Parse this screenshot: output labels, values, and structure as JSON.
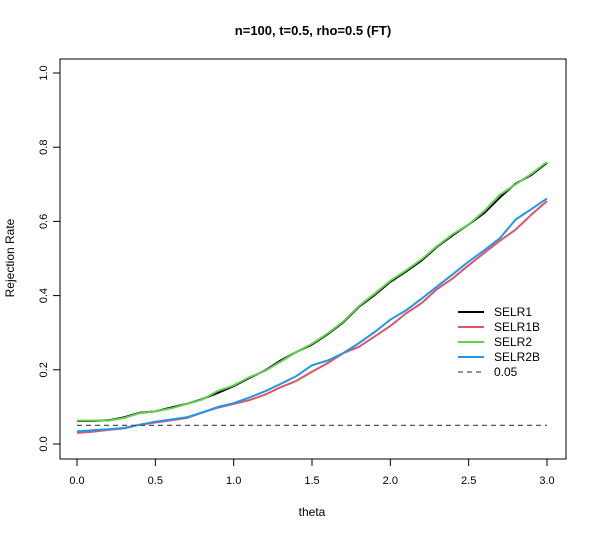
{
  "chart_data": {
    "type": "line",
    "title": "n=100, t=0.5, rho=0.5 (FT)",
    "xlabel": "theta",
    "ylabel": "Rejection Rate",
    "xlim": [
      0,
      3
    ],
    "ylim": [
      0,
      1
    ],
    "xticks": [
      0,
      0.5,
      1,
      1.5,
      2,
      2.5,
      3
    ],
    "xtick_labels": [
      "0.0",
      "0.5",
      "1.0",
      "1.5",
      "2.0",
      "2.5",
      "3.0"
    ],
    "yticks": [
      0,
      0.2,
      0.4,
      0.6,
      0.8,
      1
    ],
    "ytick_labels": [
      "0.0",
      "0.2",
      "0.4",
      "0.6",
      "0.8",
      "1.0"
    ],
    "grid": false,
    "legend_position": "right",
    "x": [
      0,
      0.1,
      0.2,
      0.3,
      0.4,
      0.5,
      0.6,
      0.7,
      0.8,
      0.9,
      1.0,
      1.1,
      1.2,
      1.3,
      1.4,
      1.5,
      1.6,
      1.7,
      1.8,
      1.9,
      2.0,
      2.1,
      2.2,
      2.3,
      2.4,
      2.5,
      2.6,
      2.7,
      2.8,
      2.9,
      3.0
    ],
    "series": [
      {
        "name": "SELR1",
        "color": "#000000",
        "dash": "solid",
        "values": [
          0.062,
          0.062,
          0.064,
          0.072,
          0.084,
          0.088,
          0.098,
          0.108,
          0.121,
          0.138,
          0.156,
          0.178,
          0.198,
          0.225,
          0.248,
          0.268,
          0.296,
          0.328,
          0.37,
          0.402,
          0.437,
          0.465,
          0.495,
          0.532,
          0.563,
          0.592,
          0.623,
          0.665,
          0.702,
          0.725,
          0.758
        ]
      },
      {
        "name": "SELR1B",
        "color": "#df536b",
        "dash": "solid",
        "values": [
          0.03,
          0.033,
          0.038,
          0.042,
          0.052,
          0.058,
          0.064,
          0.07,
          0.085,
          0.098,
          0.108,
          0.118,
          0.133,
          0.153,
          0.17,
          0.195,
          0.218,
          0.245,
          0.262,
          0.29,
          0.318,
          0.352,
          0.38,
          0.418,
          0.447,
          0.482,
          0.515,
          0.548,
          0.578,
          0.618,
          0.655
        ]
      },
      {
        "name": "SELR2",
        "color": "#61d04f",
        "dash": "solid",
        "values": [
          0.063,
          0.063,
          0.063,
          0.07,
          0.083,
          0.088,
          0.096,
          0.108,
          0.12,
          0.143,
          0.158,
          0.18,
          0.197,
          0.222,
          0.248,
          0.27,
          0.298,
          0.33,
          0.372,
          0.405,
          0.44,
          0.468,
          0.498,
          0.534,
          0.566,
          0.592,
          0.628,
          0.672,
          0.7,
          0.728,
          0.76
        ]
      },
      {
        "name": "SELR2B",
        "color": "#2297e6",
        "dash": "solid",
        "values": [
          0.034,
          0.037,
          0.04,
          0.043,
          0.052,
          0.06,
          0.066,
          0.072,
          0.085,
          0.1,
          0.11,
          0.125,
          0.142,
          0.162,
          0.183,
          0.212,
          0.225,
          0.245,
          0.272,
          0.302,
          0.335,
          0.36,
          0.392,
          0.425,
          0.458,
          0.492,
          0.522,
          0.555,
          0.605,
          0.633,
          0.662
        ]
      },
      {
        "name": "0.05",
        "color": "#555555",
        "dash": "dashed",
        "values": [
          0.05,
          0.05,
          0.05,
          0.05,
          0.05,
          0.05,
          0.05,
          0.05,
          0.05,
          0.05,
          0.05,
          0.05,
          0.05,
          0.05,
          0.05,
          0.05,
          0.05,
          0.05,
          0.05,
          0.05,
          0.05,
          0.05,
          0.05,
          0.05,
          0.05,
          0.05,
          0.05,
          0.05,
          0.05,
          0.05,
          0.05
        ]
      }
    ]
  }
}
